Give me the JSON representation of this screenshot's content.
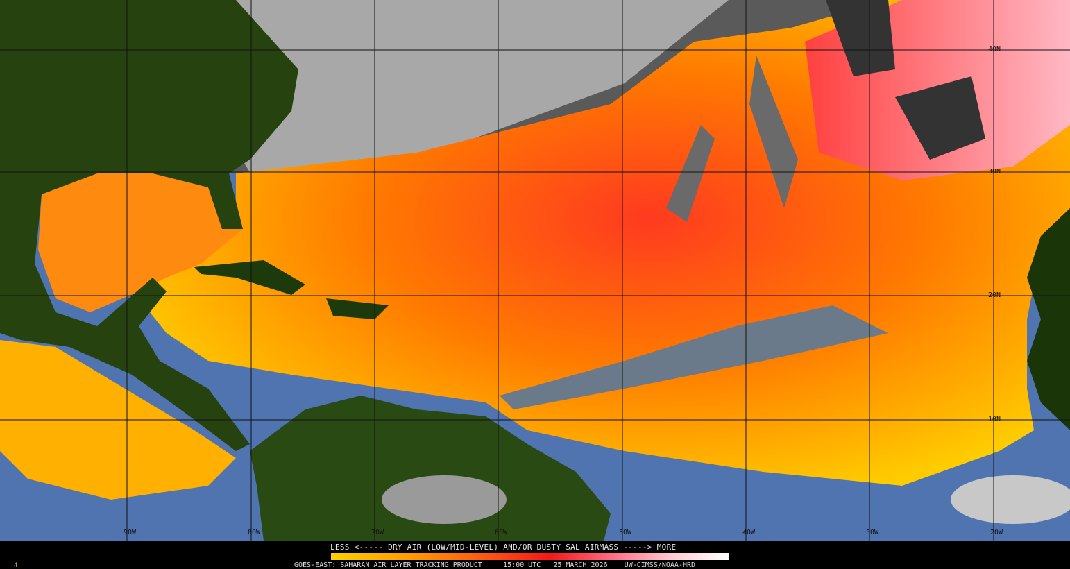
{
  "product": {
    "legend_title": "LESS <----- DRY AIR (LOW/MID-LEVEL) AND/OR DUSTY SAL AIRMASS -----> MORE",
    "satellite": "GOES-EAST: SAHARAN AIR LAYER TRACKING PRODUCT",
    "time": "15:00 UTC",
    "date": "25 MARCH 2026",
    "credit": "UW-CIMSS/NOAA-HRD",
    "corner_mark": "4"
  },
  "colorbar": {
    "colors": [
      "#ffd000",
      "#ff9a00",
      "#f41818",
      "#ff6a80",
      "#ffffff"
    ],
    "low_label": "LESS",
    "high_label": "MORE"
  },
  "grid": {
    "longitudes": [
      "90W",
      "80W",
      "70W",
      "60W",
      "50W",
      "40W",
      "30W",
      "20W"
    ],
    "latitudes": [
      "40N",
      "30N",
      "20N",
      "10N"
    ]
  },
  "colors": {
    "ocean": "#4f74b0",
    "land": "#1f3a0e",
    "cloud": "#9a9a9a",
    "sal_low": "#ffd000",
    "sal_mid": "#ff7a00",
    "sal_high": "#f41818",
    "sal_max": "#ffc0cc"
  }
}
